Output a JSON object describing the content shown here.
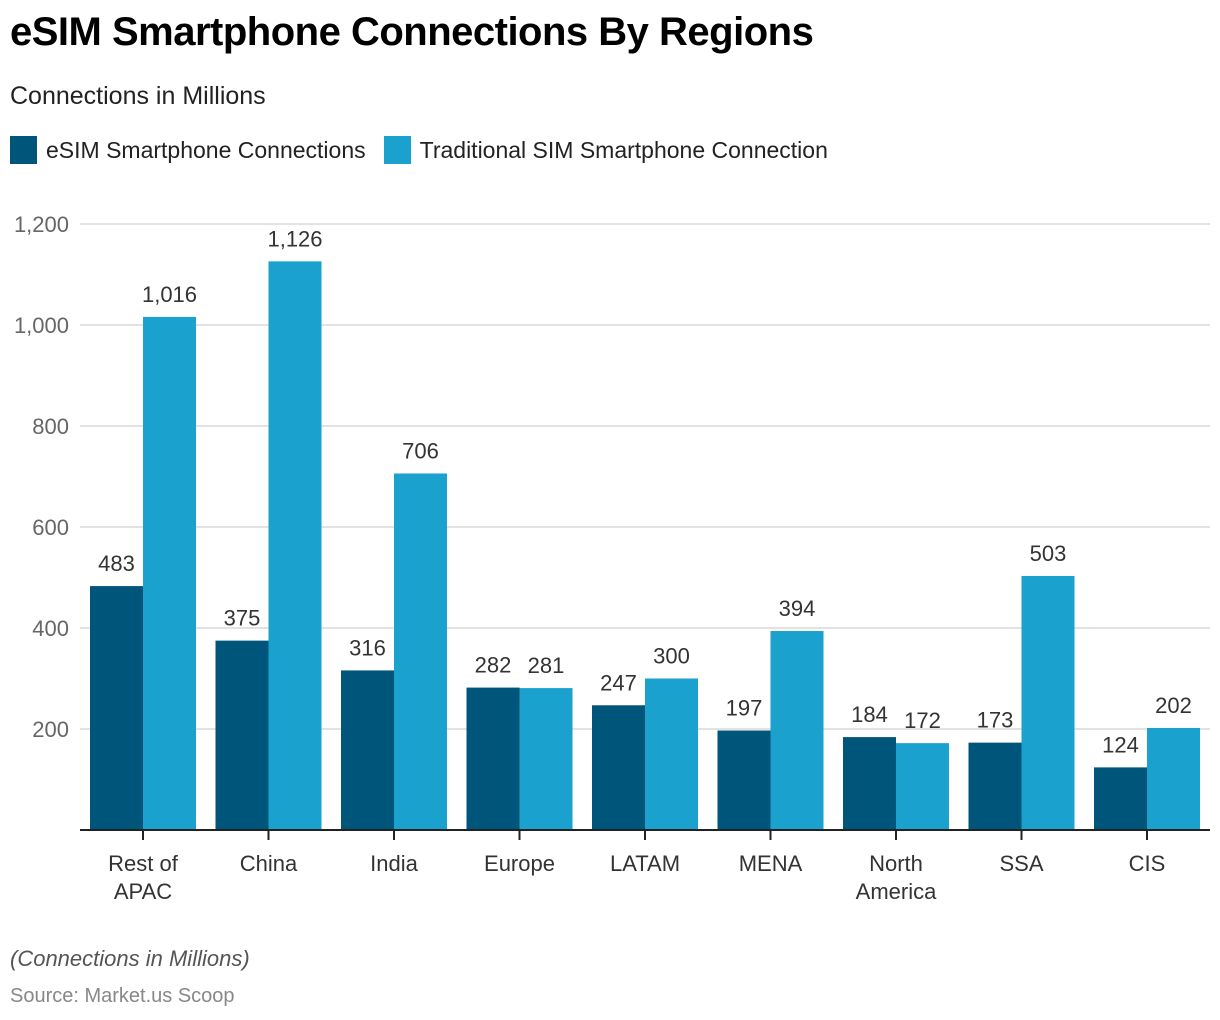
{
  "header": {
    "title": "eSIM Smartphone Connections By Regions",
    "subtitle": "Connections in Millions"
  },
  "legend": [
    {
      "label": "eSIM Smartphone Connections",
      "color": "#00557a"
    },
    {
      "label": "Traditional SIM Smartphone Connection",
      "color": "#1aa1cd"
    }
  ],
  "footer": {
    "note": "(Connections in Millions)",
    "source": "Source: Market.us Scoop"
  },
  "chart_data": {
    "type": "bar",
    "title": "eSIM Smartphone Connections By Regions",
    "subtitle": "Connections in Millions",
    "xlabel": "",
    "ylabel": "",
    "ylim": [
      0,
      1200
    ],
    "yticks": [
      200,
      400,
      600,
      800,
      1000,
      1200
    ],
    "ytick_labels": [
      "200",
      "400",
      "600",
      "800",
      "1,000",
      "1,200"
    ],
    "grid": true,
    "legend_position": "top-left",
    "categories": [
      [
        "Rest of",
        "APAC"
      ],
      [
        "China"
      ],
      [
        "India"
      ],
      [
        "Europe"
      ],
      [
        "LATAM"
      ],
      [
        "MENA"
      ],
      [
        "North",
        "America"
      ],
      [
        "SSA"
      ],
      [
        "CIS"
      ]
    ],
    "series": [
      {
        "name": "eSIM Smartphone Connections",
        "color": "#00557a",
        "values": [
          483,
          375,
          316,
          282,
          247,
          197,
          184,
          173,
          124
        ],
        "labels": [
          "483",
          "375",
          "316",
          "282",
          "247",
          "197",
          "184",
          "173",
          "124"
        ]
      },
      {
        "name": "Traditional SIM Smartphone Connection",
        "color": "#1aa1cd",
        "values": [
          1016,
          1126,
          706,
          281,
          300,
          394,
          172,
          503,
          202
        ],
        "labels": [
          "1,016",
          "1,126",
          "706",
          "281",
          "300",
          "394",
          "172",
          "503",
          "202"
        ]
      }
    ]
  }
}
